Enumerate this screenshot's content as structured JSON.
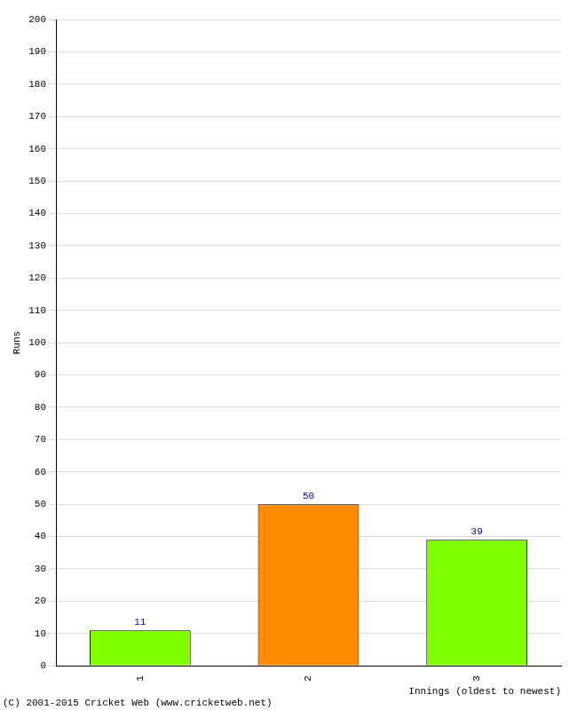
{
  "chart_data": {
    "type": "bar",
    "categories": [
      "1",
      "2",
      "3"
    ],
    "values": [
      11,
      50,
      39
    ],
    "colors": [
      "#7fff00",
      "#ff8c00",
      "#7fff00"
    ],
    "x_label": "Innings (oldest to newest)",
    "y_label": "Runs",
    "ylim": [
      0,
      200
    ],
    "yticks": [
      0,
      10,
      20,
      30,
      40,
      50,
      60,
      70,
      80,
      90,
      100,
      110,
      120,
      130,
      140,
      150,
      160,
      170,
      180,
      190,
      200
    ],
    "grid": true,
    "data_labels": true,
    "annotations": [
      "(C) 2001-2015 Cricket Web (www.cricketweb.net)"
    ]
  }
}
